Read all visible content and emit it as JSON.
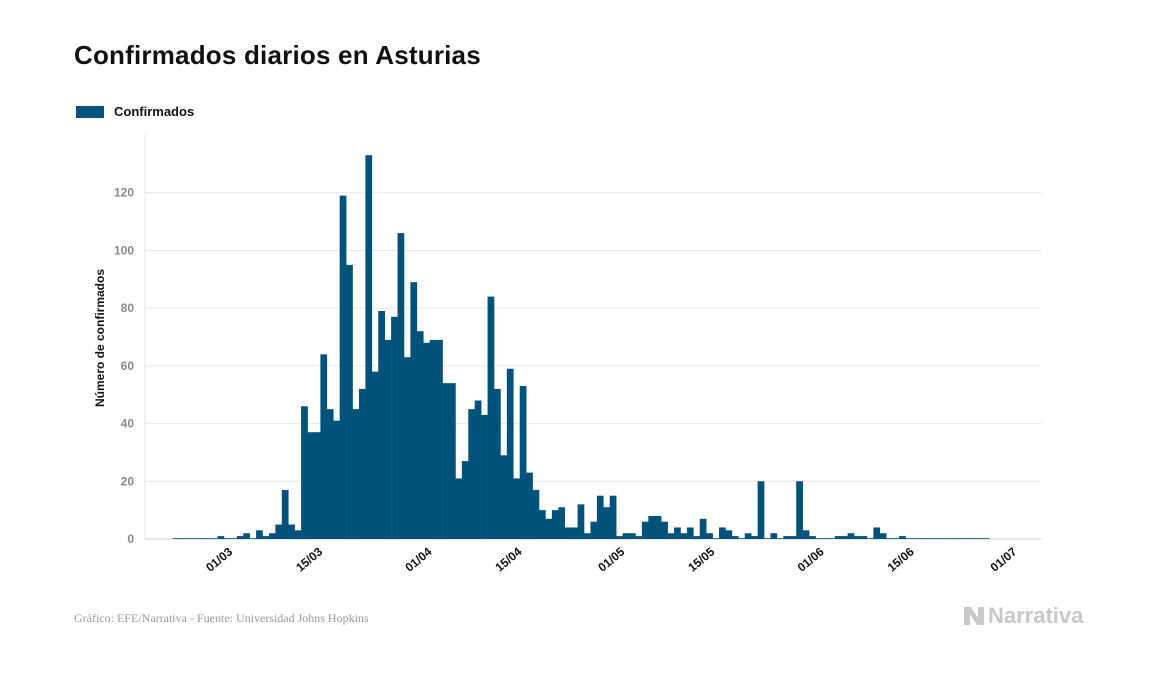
{
  "title": "Confirmados diarios en Asturias",
  "footer": "Gráfico: EFE/Narrativa - Fuente: Universidad Johns Hopkins",
  "brand": {
    "name": "Narrativa",
    "icon": "narrativa-logo-icon",
    "color": "#c8c8c8"
  },
  "colors": {
    "bar": "#00527a",
    "grid": "#e6e6e6"
  },
  "chart_data": {
    "type": "bar",
    "title": "Confirmados diarios en Asturias",
    "ylabel": "Número de confirmados",
    "xlabel": "",
    "ylim": [
      0,
      140
    ],
    "yticks": [
      0,
      20,
      40,
      60,
      80,
      100,
      120
    ],
    "grid": true,
    "legend": {
      "position": "top-left"
    },
    "x_start": "2020-02-22",
    "xticks": [
      {
        "label": "01/03",
        "day": 8
      },
      {
        "label": "15/03",
        "day": 22
      },
      {
        "label": "01/04",
        "day": 39
      },
      {
        "label": "15/04",
        "day": 53
      },
      {
        "label": "01/05",
        "day": 69
      },
      {
        "label": "15/05",
        "day": 83
      },
      {
        "label": "01/06",
        "day": 100
      },
      {
        "label": "15/06",
        "day": 114
      },
      {
        "label": "01/07",
        "day": 130
      }
    ],
    "series": [
      {
        "name": "Confirmados",
        "values": [
          0,
          0,
          0,
          0,
          0,
          0,
          0,
          1,
          0,
          0,
          1,
          2,
          0,
          3,
          1,
          2,
          5,
          17,
          5,
          3,
          46,
          37,
          37,
          64,
          45,
          41,
          119,
          95,
          45,
          52,
          133,
          58,
          79,
          69,
          77,
          106,
          63,
          89,
          72,
          68,
          69,
          69,
          54,
          54,
          21,
          27,
          45,
          48,
          43,
          84,
          52,
          29,
          59,
          21,
          53,
          23,
          17,
          10,
          7,
          10,
          11,
          4,
          4,
          12,
          2,
          6,
          15,
          11,
          15,
          1,
          2,
          2,
          1,
          6,
          8,
          8,
          6,
          2,
          4,
          2,
          4,
          1,
          7,
          2,
          0,
          4,
          3,
          1,
          0,
          2,
          1,
          20,
          0,
          2,
          0,
          1,
          1,
          20,
          3,
          1,
          0,
          0,
          0,
          1,
          1,
          2,
          1,
          1,
          0,
          4,
          2,
          0,
          0,
          1,
          0,
          0,
          0,
          0,
          0,
          0,
          0,
          0,
          0,
          0,
          0,
          0,
          0
        ]
      }
    ]
  }
}
